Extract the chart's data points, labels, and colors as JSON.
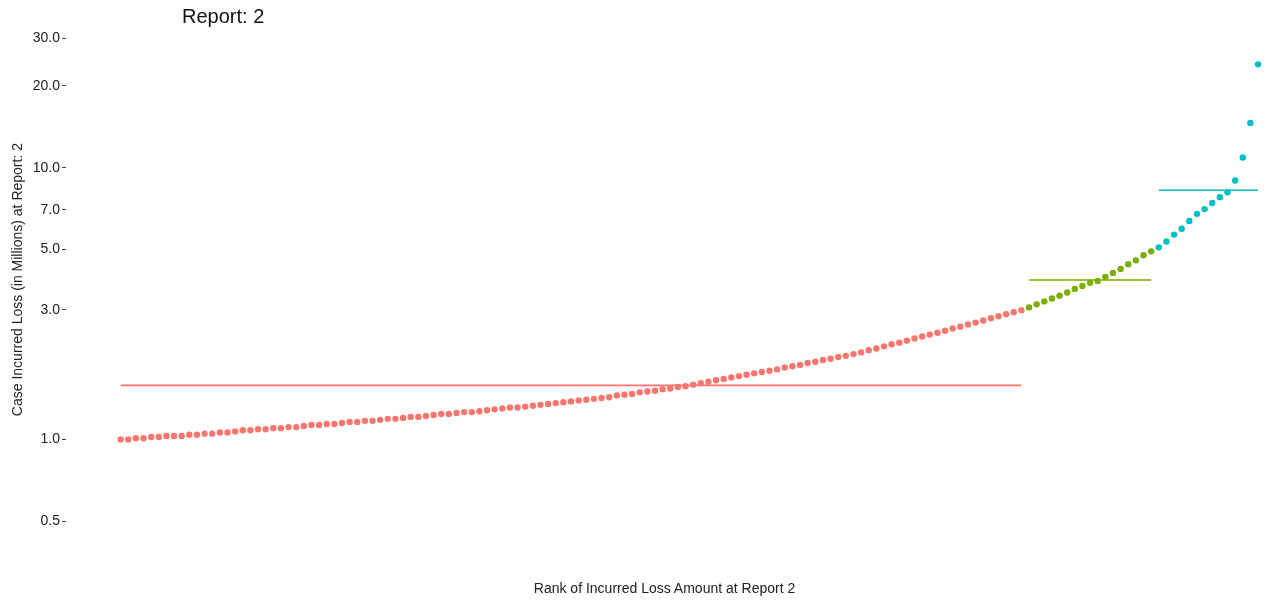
{
  "chart_data": {
    "type": "scatter",
    "title": "Report: 2",
    "xlabel": "Rank of Incurred Loss Amount at Report 2",
    "ylabel": "Case Incurred Loss (in Millions) at Report: 2",
    "log": "y",
    "marker": "circle",
    "tick_labels": "y",
    "ylim": [
      0.5,
      30
    ],
    "yticks": [
      {
        "value": 0.5,
        "label": "0.5"
      },
      {
        "value": 1,
        "label": "1.0"
      },
      {
        "value": 3,
        "label": "3.0"
      },
      {
        "value": 5,
        "label": "5.0"
      },
      {
        "value": 7,
        "label": "7.0"
      },
      {
        "value": 10,
        "label": "10.0"
      },
      {
        "value": 20,
        "label": "20.0"
      },
      {
        "value": 30,
        "label": "30.0"
      }
    ],
    "categories": [
      null,
      null,
      null,
      null,
      null,
      null,
      null,
      null,
      null,
      null,
      null,
      null,
      null,
      null,
      null,
      null,
      null,
      null,
      null,
      null,
      null,
      null,
      null,
      null,
      null,
      null,
      null,
      null,
      null,
      null,
      null,
      null,
      null,
      null,
      null,
      null,
      null,
      null,
      null,
      null,
      null,
      null,
      null,
      null,
      null,
      null,
      null,
      null,
      null,
      null,
      null,
      null,
      null,
      null,
      null,
      null,
      null,
      null,
      null,
      null,
      null,
      null,
      null,
      null,
      null,
      null,
      null,
      null,
      null,
      null,
      null,
      null,
      null,
      null,
      null,
      null,
      null,
      null,
      null,
      null,
      null,
      null,
      null,
      null,
      null,
      null,
      null,
      null,
      null,
      null,
      null,
      null,
      null,
      null,
      null,
      null,
      null,
      null,
      null,
      null,
      null,
      null,
      null,
      null,
      null,
      null,
      null,
      null,
      null,
      null,
      null,
      null,
      null,
      null,
      null,
      null,
      null,
      null,
      null,
      null,
      null,
      null,
      null,
      null,
      null,
      null,
      null,
      null,
      null,
      null,
      null,
      null,
      null,
      null,
      null,
      null,
      null,
      null,
      null,
      null,
      null,
      null,
      null,
      null,
      null,
      null,
      null,
      null,
      null,
      null
    ],
    "series": [
      {
        "color": "#f8766d",
        "values": [
          1.0,
          1.0,
          1.01,
          1.01,
          1.02,
          1.02,
          1.03,
          1.03,
          1.03,
          1.04,
          1.04,
          1.05,
          1.05,
          1.06,
          1.06,
          1.07,
          1.08,
          1.08,
          1.09,
          1.09,
          1.1,
          1.1,
          1.11,
          1.11,
          1.12,
          1.13,
          1.13,
          1.14,
          1.14,
          1.15,
          1.16,
          1.16,
          1.17,
          1.17,
          1.18,
          1.19,
          1.19,
          1.2,
          1.21,
          1.21,
          1.22,
          1.23,
          1.24,
          1.24,
          1.25,
          1.26,
          1.26,
          1.27,
          1.28,
          1.29,
          1.3,
          1.31,
          1.31,
          1.32,
          1.33,
          1.34,
          1.35,
          1.36,
          1.37,
          1.38,
          1.39,
          1.4,
          1.41,
          1.42,
          1.43,
          1.45,
          1.46,
          1.47,
          1.49,
          1.5,
          1.51,
          1.53,
          1.54,
          1.56,
          1.57,
          1.59,
          1.61,
          1.63,
          1.65,
          1.67,
          1.69,
          1.71,
          1.73,
          1.75,
          1.77,
          1.79,
          1.81,
          1.84,
          1.86,
          1.88,
          1.91,
          1.93,
          1.96,
          1.98,
          2.01,
          2.03,
          2.06,
          2.09,
          2.13,
          2.16,
          2.2,
          2.24,
          2.27,
          2.31,
          2.35,
          2.39,
          2.43,
          2.47,
          2.51,
          2.56,
          2.6,
          2.65,
          2.69,
          2.74,
          2.79,
          2.84,
          2.89,
          2.94,
          2.99,
          null,
          null,
          null,
          null,
          null,
          null,
          null,
          null,
          null,
          null,
          null,
          null,
          null,
          null,
          null,
          null,
          null,
          null,
          null,
          null,
          null,
          null,
          null,
          null,
          null,
          null,
          null,
          null,
          null,
          null,
          null
        ]
      },
      {
        "color": "#7cae00",
        "values": [
          null,
          null,
          null,
          null,
          null,
          null,
          null,
          null,
          null,
          null,
          null,
          null,
          null,
          null,
          null,
          null,
          null,
          null,
          null,
          null,
          null,
          null,
          null,
          null,
          null,
          null,
          null,
          null,
          null,
          null,
          null,
          null,
          null,
          null,
          null,
          null,
          null,
          null,
          null,
          null,
          null,
          null,
          null,
          null,
          null,
          null,
          null,
          null,
          null,
          null,
          null,
          null,
          null,
          null,
          null,
          null,
          null,
          null,
          null,
          null,
          null,
          null,
          null,
          null,
          null,
          null,
          null,
          null,
          null,
          null,
          null,
          null,
          null,
          null,
          null,
          null,
          null,
          null,
          null,
          null,
          null,
          null,
          null,
          null,
          null,
          null,
          null,
          null,
          null,
          null,
          null,
          null,
          null,
          null,
          null,
          null,
          null,
          null,
          null,
          null,
          null,
          null,
          null,
          null,
          null,
          null,
          null,
          null,
          null,
          null,
          null,
          null,
          null,
          null,
          null,
          null,
          null,
          null,
          null,
          3.06,
          3.14,
          3.22,
          3.3,
          3.38,
          3.47,
          3.58,
          3.67,
          3.77,
          3.83,
          3.96,
          4.1,
          4.24,
          4.41,
          4.56,
          4.76,
          4.92,
          null,
          null,
          null,
          null,
          null,
          null,
          null,
          null,
          null,
          null,
          null,
          null,
          null,
          null
        ]
      },
      {
        "color": "#00bfc4",
        "values": [
          null,
          null,
          null,
          null,
          null,
          null,
          null,
          null,
          null,
          null,
          null,
          null,
          null,
          null,
          null,
          null,
          null,
          null,
          null,
          null,
          null,
          null,
          null,
          null,
          null,
          null,
          null,
          null,
          null,
          null,
          null,
          null,
          null,
          null,
          null,
          null,
          null,
          null,
          null,
          null,
          null,
          null,
          null,
          null,
          null,
          null,
          null,
          null,
          null,
          null,
          null,
          null,
          null,
          null,
          null,
          null,
          null,
          null,
          null,
          null,
          null,
          null,
          null,
          null,
          null,
          null,
          null,
          null,
          null,
          null,
          null,
          null,
          null,
          null,
          null,
          null,
          null,
          null,
          null,
          null,
          null,
          null,
          null,
          null,
          null,
          null,
          null,
          null,
          null,
          null,
          null,
          null,
          null,
          null,
          null,
          null,
          null,
          null,
          null,
          null,
          null,
          null,
          null,
          null,
          null,
          null,
          null,
          null,
          null,
          null,
          null,
          null,
          null,
          null,
          null,
          null,
          null,
          null,
          null,
          null,
          null,
          null,
          null,
          null,
          null,
          null,
          null,
          null,
          null,
          null,
          null,
          null,
          null,
          null,
          null,
          null,
          5.09,
          5.35,
          5.67,
          5.96,
          6.37,
          6.76,
          7.04,
          7.41,
          7.79,
          8.12,
          8.97,
          10.9,
          14.6,
          24.0
        ]
      },
      {
        "type": "line",
        "marker": "none",
        "color": "#f8766d",
        "values": [
          1.58,
          1.58,
          1.58,
          1.58,
          1.58,
          1.58,
          1.58,
          1.58,
          1.58,
          1.58,
          1.58,
          1.58,
          1.58,
          1.58,
          1.58,
          1.58,
          1.58,
          1.58,
          1.58,
          1.58,
          1.58,
          1.58,
          1.58,
          1.58,
          1.58,
          1.58,
          1.58,
          1.58,
          1.58,
          1.58,
          1.58,
          1.58,
          1.58,
          1.58,
          1.58,
          1.58,
          1.58,
          1.58,
          1.58,
          1.58,
          1.58,
          1.58,
          1.58,
          1.58,
          1.58,
          1.58,
          1.58,
          1.58,
          1.58,
          1.58,
          1.58,
          1.58,
          1.58,
          1.58,
          1.58,
          1.58,
          1.58,
          1.58,
          1.58,
          1.58,
          1.58,
          1.58,
          1.58,
          1.58,
          1.58,
          1.58,
          1.58,
          1.58,
          1.58,
          1.58,
          1.58,
          1.58,
          1.58,
          1.58,
          1.58,
          1.58,
          1.58,
          1.58,
          1.58,
          1.58,
          1.58,
          1.58,
          1.58,
          1.58,
          1.58,
          1.58,
          1.58,
          1.58,
          1.58,
          1.58,
          1.58,
          1.58,
          1.58,
          1.58,
          1.58,
          1.58,
          1.58,
          1.58,
          1.58,
          1.58,
          1.58,
          1.58,
          1.58,
          1.58,
          1.58,
          1.58,
          1.58,
          1.58,
          1.58,
          1.58,
          1.58,
          1.58,
          1.58,
          1.58,
          1.58,
          1.58,
          1.58,
          1.58,
          1.58,
          null,
          null,
          null,
          null,
          null,
          null,
          null,
          null,
          null,
          null,
          null,
          null,
          null,
          null,
          null,
          null,
          null,
          null,
          null,
          null,
          null,
          null,
          null,
          null,
          null,
          null,
          null,
          null,
          null,
          null,
          null
        ]
      },
      {
        "type": "line",
        "marker": "none",
        "color": "#7cae00",
        "values": [
          null,
          null,
          null,
          null,
          null,
          null,
          null,
          null,
          null,
          null,
          null,
          null,
          null,
          null,
          null,
          null,
          null,
          null,
          null,
          null,
          null,
          null,
          null,
          null,
          null,
          null,
          null,
          null,
          null,
          null,
          null,
          null,
          null,
          null,
          null,
          null,
          null,
          null,
          null,
          null,
          null,
          null,
          null,
          null,
          null,
          null,
          null,
          null,
          null,
          null,
          null,
          null,
          null,
          null,
          null,
          null,
          null,
          null,
          null,
          null,
          null,
          null,
          null,
          null,
          null,
          null,
          null,
          null,
          null,
          null,
          null,
          null,
          null,
          null,
          null,
          null,
          null,
          null,
          null,
          null,
          null,
          null,
          null,
          null,
          null,
          null,
          null,
          null,
          null,
          null,
          null,
          null,
          null,
          null,
          null,
          null,
          null,
          null,
          null,
          null,
          null,
          null,
          null,
          null,
          null,
          null,
          null,
          null,
          null,
          null,
          null,
          null,
          null,
          null,
          null,
          null,
          null,
          null,
          null,
          3.86,
          3.86,
          3.86,
          3.86,
          3.86,
          3.86,
          3.86,
          3.86,
          3.86,
          3.86,
          3.86,
          3.86,
          3.86,
          3.86,
          3.86,
          3.86,
          3.86,
          null,
          null,
          null,
          null,
          null,
          null,
          null,
          null,
          null,
          null,
          null,
          null,
          null,
          null
        ]
      },
      {
        "type": "line",
        "marker": "none",
        "color": "#00bfc4",
        "values": [
          null,
          null,
          null,
          null,
          null,
          null,
          null,
          null,
          null,
          null,
          null,
          null,
          null,
          null,
          null,
          null,
          null,
          null,
          null,
          null,
          null,
          null,
          null,
          null,
          null,
          null,
          null,
          null,
          null,
          null,
          null,
          null,
          null,
          null,
          null,
          null,
          null,
          null,
          null,
          null,
          null,
          null,
          null,
          null,
          null,
          null,
          null,
          null,
          null,
          null,
          null,
          null,
          null,
          null,
          null,
          null,
          null,
          null,
          null,
          null,
          null,
          null,
          null,
          null,
          null,
          null,
          null,
          null,
          null,
          null,
          null,
          null,
          null,
          null,
          null,
          null,
          null,
          null,
          null,
          null,
          null,
          null,
          null,
          null,
          null,
          null,
          null,
          null,
          null,
          null,
          null,
          null,
          null,
          null,
          null,
          null,
          null,
          null,
          null,
          null,
          null,
          null,
          null,
          null,
          null,
          null,
          null,
          null,
          null,
          null,
          null,
          null,
          null,
          null,
          null,
          null,
          null,
          null,
          null,
          null,
          null,
          null,
          null,
          null,
          null,
          null,
          null,
          null,
          null,
          null,
          null,
          null,
          null,
          null,
          null,
          null,
          8.26,
          8.26,
          8.26,
          8.26,
          8.26,
          8.26,
          8.26,
          8.26,
          8.26,
          8.26,
          8.26,
          8.26,
          8.26,
          8.26
        ]
      }
    ]
  }
}
